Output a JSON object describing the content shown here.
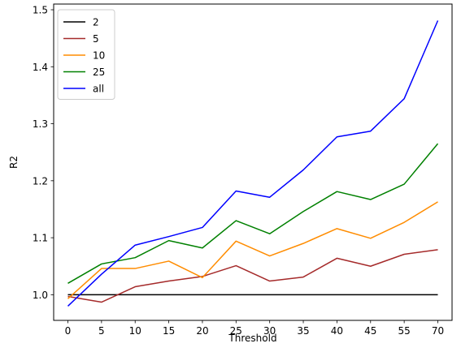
{
  "chart_data": {
    "type": "line",
    "title": "",
    "xlabel": "Threshold",
    "ylabel": "R2",
    "categories": [
      "0",
      "5",
      "10",
      "15",
      "20",
      "25",
      "30",
      "35",
      "40",
      "45",
      "55",
      "70"
    ],
    "ylim": [
      0.955,
      1.51
    ],
    "yticks": [
      "1.0",
      "1.1",
      "1.2",
      "1.3",
      "1.4",
      "1.5"
    ],
    "ytick_values": [
      1.0,
      1.1,
      1.2,
      1.3,
      1.4,
      1.5
    ],
    "grid": false,
    "legend_position": "upper-left",
    "series": [
      {
        "name": "2",
        "color": "#000000",
        "values": [
          1.0,
          1.0,
          1.0,
          1.0,
          1.0,
          1.0,
          1.0,
          1.0,
          1.0,
          1.0,
          1.0,
          1.0
        ]
      },
      {
        "name": "5",
        "color": "#a52a2a",
        "values": [
          0.997,
          0.987,
          1.014,
          1.024,
          1.032,
          1.051,
          1.024,
          1.031,
          1.064,
          1.05,
          1.071,
          1.079
        ]
      },
      {
        "name": "10",
        "color": "#ff8c00",
        "values": [
          0.993,
          1.046,
          1.046,
          1.059,
          1.03,
          1.094,
          1.068,
          1.09,
          1.116,
          1.099,
          1.127,
          1.163
        ]
      },
      {
        "name": "25",
        "color": "#008000",
        "values": [
          1.02,
          1.054,
          1.065,
          1.095,
          1.082,
          1.13,
          1.107,
          1.146,
          1.181,
          1.167,
          1.194,
          1.265
        ]
      },
      {
        "name": "all",
        "color": "#0000ff",
        "values": [
          0.98,
          1.036,
          1.087,
          1.102,
          1.118,
          1.182,
          1.171,
          1.219,
          1.277,
          1.287,
          1.344,
          1.481
        ]
      }
    ]
  }
}
